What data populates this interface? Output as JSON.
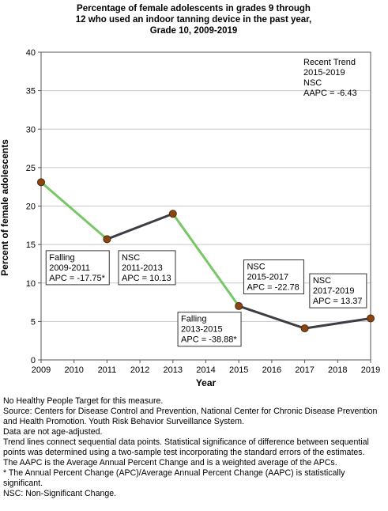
{
  "chart_data": {
    "type": "line",
    "title_lines": [
      "Percentage of female adolescents in grades 9 through",
      "12 who used an indoor tanning device in the past year,",
      "Grade 10,  2009-2019"
    ],
    "xlabel": "Year",
    "ylabel": "Percent of female adolescents",
    "xlim": [
      2009,
      2019
    ],
    "ylim": [
      0,
      40
    ],
    "x_ticks": [
      2009,
      2010,
      2011,
      2012,
      2013,
      2014,
      2015,
      2016,
      2017,
      2018,
      2019
    ],
    "y_ticks": [
      0,
      5,
      10,
      15,
      20,
      25,
      30,
      35,
      40
    ],
    "grid": "horizontal",
    "x": [
      2009,
      2011,
      2013,
      2015,
      2017,
      2019
    ],
    "values": [
      23.1,
      15.7,
      19.0,
      7.0,
      4.1,
      5.4
    ],
    "segments": [
      {
        "from": 2009,
        "to": 2011,
        "trend": "falling",
        "color": "#77c766"
      },
      {
        "from": 2011,
        "to": 2013,
        "trend": "nsc",
        "color": "#3d3d45"
      },
      {
        "from": 2013,
        "to": 2015,
        "trend": "falling",
        "color": "#77c766"
      },
      {
        "from": 2015,
        "to": 2017,
        "trend": "nsc",
        "color": "#3d3d45"
      },
      {
        "from": 2017,
        "to": 2019,
        "trend": "nsc",
        "color": "#3d3d45"
      }
    ],
    "point_color": "#8b4513",
    "annotations": [
      {
        "lines": [
          "Falling",
          "2009-2011",
          "APC = -17.75*"
        ],
        "anchor_x": 2009.15,
        "anchor_y": 14.2
      },
      {
        "lines": [
          "NSC",
          "2011-2013",
          "APC = 10.13"
        ],
        "anchor_x": 2011.35,
        "anchor_y": 14.2
      },
      {
        "lines": [
          "Falling",
          "2013-2015",
          "APC = -38.88*"
        ],
        "anchor_x": 2013.15,
        "anchor_y": 6.2
      },
      {
        "lines": [
          "NSC",
          "2015-2017",
          "APC = -22.78"
        ],
        "anchor_x": 2015.15,
        "anchor_y": 13.0
      },
      {
        "lines": [
          "NSC",
          "2017-2019",
          "APC = 13.37"
        ],
        "anchor_x": 2017.15,
        "anchor_y": 11.2
      }
    ],
    "recent_trend_lines": [
      "Recent Trend",
      "2015-2019",
      "NSC",
      "AAPC = -6.43"
    ]
  },
  "footnotes": [
    "No Healthy People Target for this measure.",
    "Source: Centers for Disease Control and Prevention, National Center for Chronic Disease Prevention and Health Promotion. Youth Risk Behavior Surveillance System.",
    "Data are not age-adjusted.",
    "Trend lines connect sequential data points. Statistical significance of difference between sequential points was determined using a two-sample test incorporating the standard errors of the estimates.",
    "The AAPC is the Average Annual Percent Change and is a weighted average of the APCs.",
    "* The Annual Percent Change (APC)/Average Annual Percent Change (AAPC) is statistically significant.",
    "NSC: Non-Significant Change."
  ]
}
